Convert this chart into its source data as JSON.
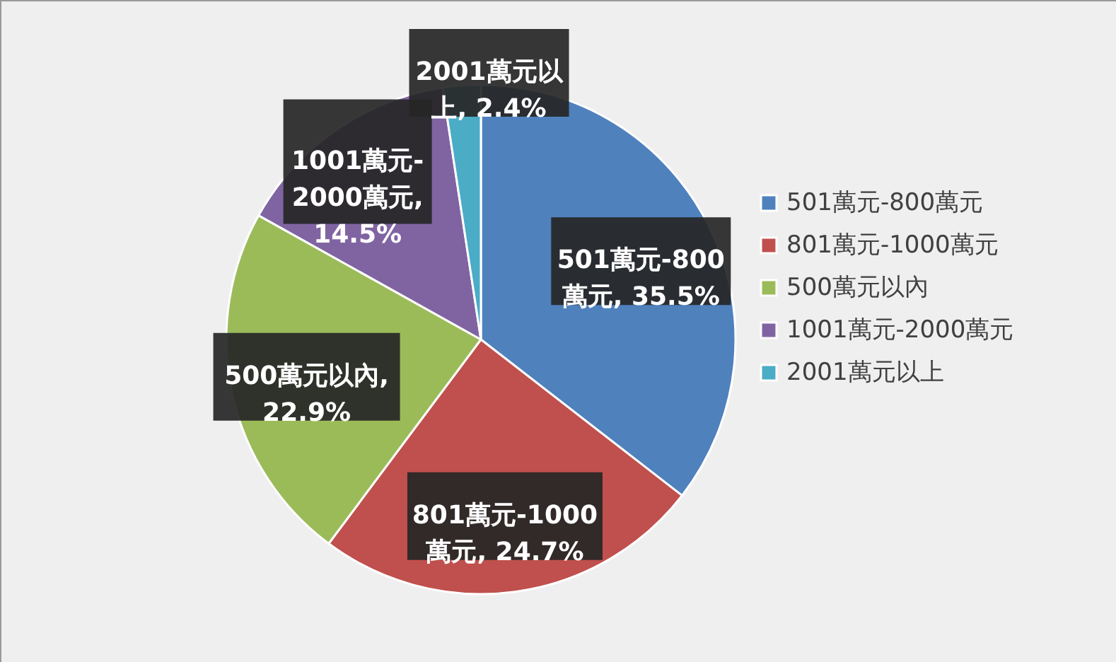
{
  "chart_data": {
    "type": "pie",
    "categories": [
      "501萬元-800萬元",
      "801萬元-1000萬元",
      "500萬元以內",
      "1001萬元-2000萬元",
      "2001萬元以上"
    ],
    "values": [
      35.5,
      24.7,
      22.9,
      14.5,
      2.4
    ],
    "colors": [
      "#4f81bd",
      "#c0504d",
      "#9bbb59",
      "#8064a2",
      "#4bacc6"
    ],
    "value_labels": [
      "501萬元-800萬元, 35.5%",
      "801萬元-1000萬元, 24.7%",
      "500萬元以內, 22.9%",
      "1001萬元-2000萬元, 14.5%",
      "2001萬元以上, 2.4%"
    ],
    "legend": "right"
  }
}
